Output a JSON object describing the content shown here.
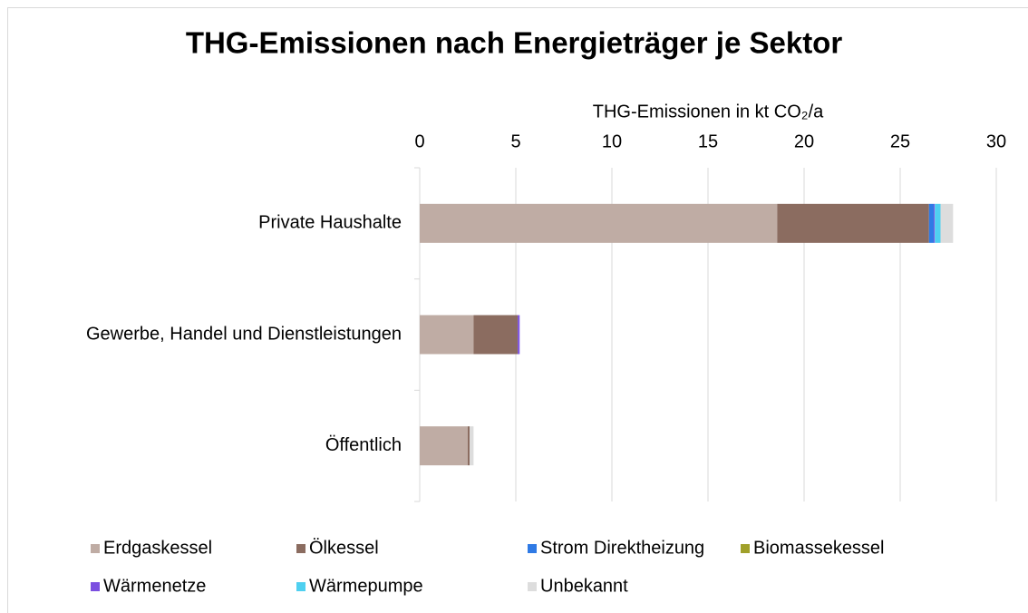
{
  "chart_data": {
    "type": "stacked-barh",
    "title": "THG-Emissionen nach Energieträger je Sektor",
    "x_label": "THG-Emissionen in kt CO₂/a",
    "categories": [
      "Private Haushalte",
      "Gewerbe, Handel und Dienstleistungen",
      "Öffentlich"
    ],
    "series": [
      {
        "name": "Erdgaskessel",
        "color": "#bfaca4",
        "values": [
          18.6,
          2.8,
          2.5
        ]
      },
      {
        "name": "Ölkessel",
        "color": "#8b6c60",
        "values": [
          7.9,
          2.3,
          0.1
        ]
      },
      {
        "name": "Strom Direktheizung",
        "color": "#2f7ae5",
        "values": [
          0.25,
          0,
          0
        ]
      },
      {
        "name": "Biomassekessel",
        "color": "#a0a02a",
        "values": [
          0,
          0,
          0
        ]
      },
      {
        "name": "Wärmenetze",
        "color": "#7b4fe0",
        "values": [
          0.05,
          0.1,
          0
        ]
      },
      {
        "name": "Wärmepumpe",
        "color": "#4fd0f0",
        "values": [
          0.3,
          0,
          0
        ]
      },
      {
        "name": "Unbekannt",
        "color": "#dddddd",
        "values": [
          0.65,
          0,
          0.2
        ]
      }
    ],
    "xlim": [
      0,
      30
    ],
    "xticks": [
      0,
      5,
      10,
      15,
      20,
      25,
      30
    ],
    "grid": true,
    "legend": "bottom"
  }
}
